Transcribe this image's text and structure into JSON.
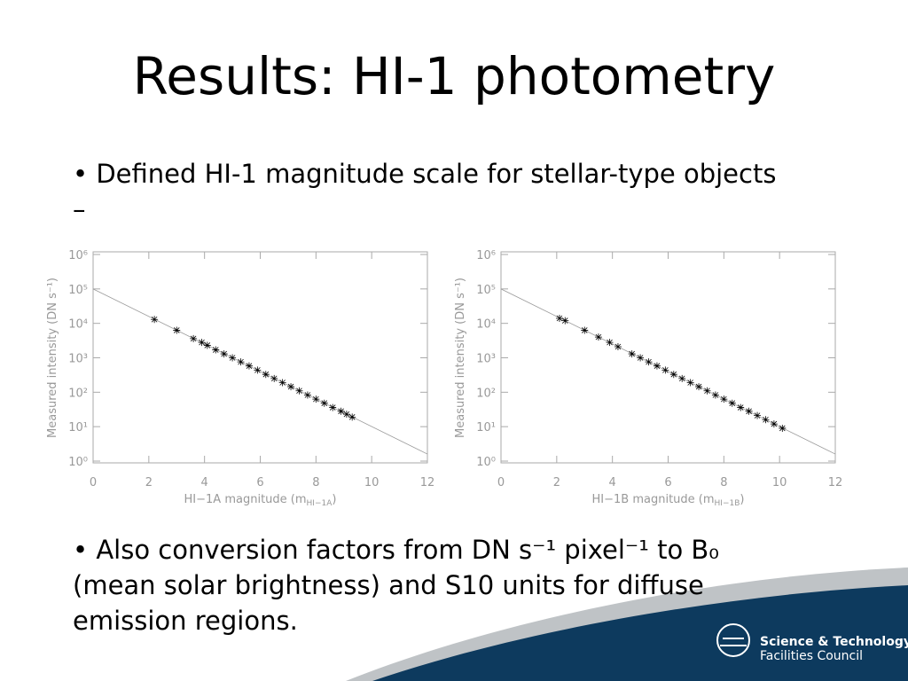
{
  "title": "Results: HI-1 photometry",
  "bullets": [
    "• Defined HI-1 magnitude scale for stellar-type objects –",
    "• Also conversion factors from DN s⁻¹ pixel⁻¹ to B₀ (mean solar brightness) and S10 units for diffuse emission regions."
  ],
  "logo": [
    "Science & Technology",
    "Facilities Council"
  ],
  "chart_data": [
    {
      "type": "scatter",
      "log_y": true,
      "y_label": "Measured intensity (DN s⁻¹)",
      "x_label": {
        "text": "HI−1A magnitude (m",
        "sub": "HI−1A",
        "end": ")"
      },
      "xlim": [
        0,
        12
      ],
      "xticks": [
        0,
        2,
        4,
        6,
        8,
        10,
        12
      ],
      "ylim": [
        1,
        1000000
      ],
      "yticks": [
        {
          "value": 1,
          "label": "10⁰"
        },
        {
          "value": 10,
          "label": "10¹"
        },
        {
          "value": 100,
          "label": "10²"
        },
        {
          "value": 1000,
          "label": "10³"
        },
        {
          "value": 10000,
          "label": "10⁴"
        },
        {
          "value": 100000,
          "label": "10⁵"
        },
        {
          "value": 1000000,
          "label": "10⁶"
        }
      ],
      "fit_line": {
        "x": [
          0,
          12
        ],
        "values": [
          100000,
          1.6
        ]
      },
      "color": "#000000",
      "x": [
        2.2,
        3.0,
        3.6,
        3.9,
        4.1,
        4.4,
        4.7,
        5.0,
        5.3,
        5.6,
        5.9,
        6.2,
        6.5,
        6.8,
        7.1,
        7.4,
        7.7,
        8.0,
        8.3,
        8.6,
        8.9,
        9.1,
        9.3
      ],
      "values": [
        13000,
        6300,
        3600,
        2800,
        2300,
        1700,
        1300,
        1000,
        760,
        580,
        440,
        330,
        250,
        190,
        145,
        110,
        83,
        63,
        48,
        36,
        28,
        23,
        19
      ]
    },
    {
      "type": "scatter",
      "log_y": true,
      "y_label": "Measured intensity (DN s⁻¹)",
      "x_label": {
        "text": "HI−1B magnitude (m",
        "sub": "HI−1B",
        "end": ")"
      },
      "xlim": [
        0,
        12
      ],
      "xticks": [
        0,
        2,
        4,
        6,
        8,
        10,
        12
      ],
      "ylim": [
        1,
        1000000
      ],
      "yticks": [
        {
          "value": 1,
          "label": "10⁰"
        },
        {
          "value": 10,
          "label": "10¹"
        },
        {
          "value": 100,
          "label": "10²"
        },
        {
          "value": 1000,
          "label": "10³"
        },
        {
          "value": 10000,
          "label": "10⁴"
        },
        {
          "value": 100000,
          "label": "10⁵"
        },
        {
          "value": 1000000,
          "label": "10⁶"
        }
      ],
      "fit_line": {
        "x": [
          0,
          12
        ],
        "values": [
          100000,
          1.6
        ]
      },
      "color": "#000000",
      "x": [
        2.1,
        2.3,
        3.0,
        3.5,
        3.9,
        4.2,
        4.7,
        5.0,
        5.3,
        5.6,
        5.9,
        6.2,
        6.5,
        6.8,
        7.1,
        7.4,
        7.7,
        8.0,
        8.3,
        8.6,
        8.9,
        9.2,
        9.5,
        9.8,
        10.1
      ],
      "values": [
        14000,
        12000,
        6300,
        4000,
        2800,
        2100,
        1300,
        1000,
        760,
        580,
        440,
        330,
        250,
        190,
        145,
        110,
        83,
        63,
        48,
        36,
        28,
        21,
        16,
        12,
        9
      ]
    }
  ]
}
